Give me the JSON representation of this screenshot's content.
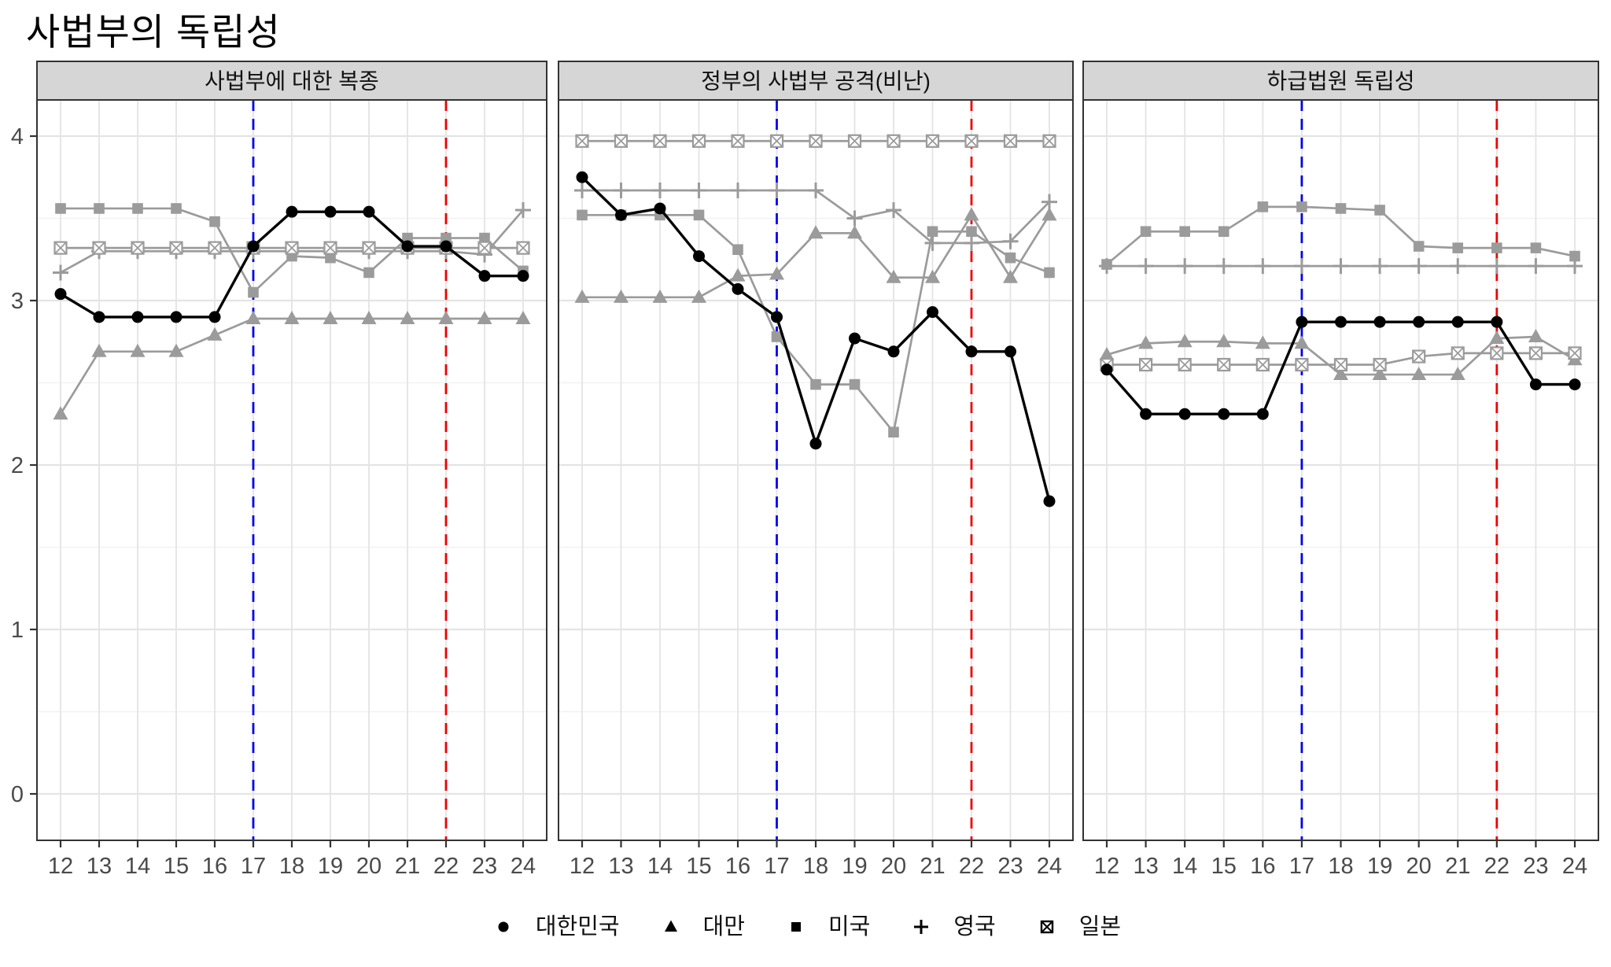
{
  "title": "사법부의 독립성",
  "chart_data": {
    "type": "line",
    "title": "사법부의 독립성",
    "facets": true,
    "x": [
      12,
      13,
      14,
      15,
      16,
      17,
      18,
      19,
      20,
      21,
      22,
      23,
      24
    ],
    "x_tick_labels": [
      "12",
      "13",
      "14",
      "15",
      "16",
      "17",
      "18",
      "19",
      "20",
      "21",
      "22",
      "23",
      "24"
    ],
    "y_ticks": [
      0,
      1,
      2,
      3,
      4
    ],
    "y_tick_labels": [
      "0",
      "1",
      "2",
      "3",
      "4"
    ],
    "ylim": [
      -0.28,
      4.22
    ],
    "grid": "on",
    "legend_position": "bottom",
    "reference_lines": [
      {
        "x": 17,
        "color": "#0000ee",
        "style": "dashed",
        "name": "blue-dashed-line"
      },
      {
        "x": 22,
        "color": "#ee0000",
        "style": "dashed",
        "name": "red-dashed-line"
      }
    ],
    "series_styles": [
      {
        "name": "대한민국",
        "marker": "circle",
        "color": "#000000"
      },
      {
        "name": "대만",
        "marker": "triangle",
        "color": "#9b9b9b"
      },
      {
        "name": "미국",
        "marker": "square",
        "color": "#9b9b9b"
      },
      {
        "name": "영국",
        "marker": "plus",
        "color": "#9b9b9b"
      },
      {
        "name": "일본",
        "marker": "square-x",
        "color": "#9b9b9b"
      }
    ],
    "panels": [
      {
        "title": "사법부에 대한 복종",
        "series": [
          {
            "name": "대한민국",
            "values": [
              3.04,
              2.9,
              2.9,
              2.9,
              2.9,
              3.33,
              3.54,
              3.54,
              3.54,
              3.33,
              3.33,
              3.15,
              3.15
            ]
          },
          {
            "name": "대만",
            "values": [
              2.31,
              2.69,
              2.69,
              2.69,
              2.79,
              2.89,
              2.89,
              2.89,
              2.89,
              2.89,
              2.89,
              2.89,
              2.89
            ]
          },
          {
            "name": "미국",
            "values": [
              3.56,
              3.56,
              3.56,
              3.56,
              3.48,
              3.05,
              3.27,
              3.26,
              3.17,
              3.38,
              3.38,
              3.38,
              3.18
            ]
          },
          {
            "name": "영국",
            "values": [
              3.17,
              3.3,
              3.3,
              3.3,
              3.3,
              3.3,
              3.3,
              3.3,
              3.3,
              3.3,
              3.3,
              3.28,
              3.55
            ]
          },
          {
            "name": "일본",
            "values": [
              3.32,
              3.32,
              3.32,
              3.32,
              3.32,
              3.32,
              3.32,
              3.32,
              3.32,
              3.32,
              3.32,
              3.32,
              3.32
            ]
          }
        ]
      },
      {
        "title": "정부의 사법부 공격(비난)",
        "series": [
          {
            "name": "대한민국",
            "values": [
              3.75,
              3.52,
              3.56,
              3.27,
              3.07,
              2.9,
              2.13,
              2.77,
              2.69,
              2.93,
              2.69,
              2.69,
              1.78
            ]
          },
          {
            "name": "대만",
            "values": [
              3.02,
              3.02,
              3.02,
              3.02,
              3.15,
              3.16,
              3.41,
              3.41,
              3.14,
              3.14,
              3.52,
              3.14,
              3.52
            ]
          },
          {
            "name": "미국",
            "values": [
              3.52,
              3.52,
              3.52,
              3.52,
              3.31,
              2.78,
              2.49,
              2.49,
              2.2,
              3.42,
              3.42,
              3.26,
              3.17
            ]
          },
          {
            "name": "영국",
            "values": [
              3.67,
              3.67,
              3.67,
              3.67,
              3.67,
              3.67,
              3.67,
              3.5,
              3.55,
              3.35,
              3.35,
              3.36,
              3.6
            ]
          },
          {
            "name": "일본",
            "values": [
              3.97,
              3.97,
              3.97,
              3.97,
              3.97,
              3.97,
              3.97,
              3.97,
              3.97,
              3.97,
              3.97,
              3.97,
              3.97
            ]
          }
        ]
      },
      {
        "title": "하급법원 독립성",
        "series": [
          {
            "name": "대한민국",
            "values": [
              2.58,
              2.31,
              2.31,
              2.31,
              2.31,
              2.87,
              2.87,
              2.87,
              2.87,
              2.87,
              2.87,
              2.49,
              2.49
            ]
          },
          {
            "name": "대만",
            "values": [
              2.67,
              2.74,
              2.75,
              2.75,
              2.74,
              2.74,
              2.55,
              2.55,
              2.55,
              2.55,
              2.77,
              2.78,
              2.64
            ]
          },
          {
            "name": "미국",
            "values": [
              3.22,
              3.42,
              3.42,
              3.42,
              3.57,
              3.57,
              3.56,
              3.55,
              3.33,
              3.32,
              3.32,
              3.32,
              3.27
            ]
          },
          {
            "name": "영국",
            "values": [
              3.21,
              3.21,
              3.21,
              3.21,
              3.21,
              3.21,
              3.21,
              3.21,
              3.21,
              3.21,
              3.21,
              3.21,
              3.21
            ]
          },
          {
            "name": "일본",
            "values": [
              2.61,
              2.61,
              2.61,
              2.61,
              2.61,
              2.61,
              2.61,
              2.61,
              2.66,
              2.68,
              2.68,
              2.68,
              2.68
            ]
          }
        ]
      }
    ],
    "legend": [
      {
        "label": "대한민국",
        "marker": "circle"
      },
      {
        "label": "대만",
        "marker": "triangle"
      },
      {
        "label": "미국",
        "marker": "square"
      },
      {
        "label": "영국",
        "marker": "plus"
      },
      {
        "label": "일본",
        "marker": "square-x"
      }
    ],
    "colors": {
      "korea_line": "#000000",
      "other_lines": "#9b9b9b",
      "panel_header_bg": "#d6d6d6",
      "panel_border": "#333333",
      "grid_major": "#e4e4e4",
      "grid_minor": "#f2f2f2",
      "axis_text": "#4a4a4a",
      "ref_blue": "#0000ee",
      "ref_red": "#ee0000"
    }
  }
}
